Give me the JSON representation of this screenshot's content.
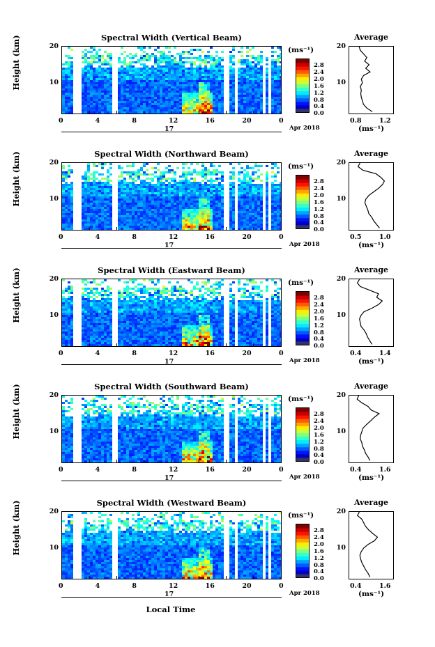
{
  "figure": {
    "x_axis_title": "Local Time",
    "y_axis_title": "Height (km)",
    "date_label": "Apr 2018",
    "day_label": "17",
    "colorbar_unit": "(ms⁻¹)",
    "avg_title": "Average",
    "avg_unit": "(ms⁻¹)",
    "x_tick_labels": [
      "0",
      "4",
      "8",
      "12",
      "16",
      "20",
      "0"
    ],
    "y_tick_labels": [
      "20",
      "10"
    ],
    "colorbar_tick_labels": [
      "2.8",
      "2.4",
      "2.0",
      "1.6",
      "1.2",
      "0.8",
      "0.4",
      "0.0"
    ]
  },
  "chart_data": [
    {
      "type": "heatmap",
      "title": "Spectral Width (Vertical Beam)",
      "xlabel": "",
      "ylabel": "Height (km)",
      "xlim": [
        0,
        24
      ],
      "ylim": [
        1.5,
        20
      ],
      "colorbar_range": [
        0.0,
        3.0
      ],
      "avg_profile": {
        "xlabel": "(ms⁻¹)",
        "xlim": [
          0.6,
          1.4
        ],
        "ticks": [
          "0.8",
          "1.2"
        ],
        "height": [
          2,
          3,
          4,
          5,
          6,
          7,
          8,
          9,
          10,
          11,
          12,
          13,
          14,
          15,
          16,
          17,
          18,
          19,
          20
        ],
        "value": [
          1.02,
          0.92,
          0.86,
          0.84,
          0.82,
          0.81,
          0.82,
          0.8,
          0.84,
          0.82,
          0.86,
          0.98,
          0.9,
          0.96,
          0.88,
          0.92,
          0.86,
          0.8,
          0.78
        ]
      }
    },
    {
      "type": "heatmap",
      "title": "Spectral Width (Northward Beam)",
      "xlabel": "",
      "ylabel": "Height (km)",
      "xlim": [
        0,
        24
      ],
      "ylim": [
        1.5,
        20
      ],
      "colorbar_range": [
        0.0,
        3.0
      ],
      "avg_profile": {
        "xlabel": "(ms⁻¹)",
        "xlim": [
          0.3,
          1.2
        ],
        "ticks": [
          "0.5",
          "1.0"
        ],
        "height": [
          2,
          3,
          4,
          5,
          6,
          7,
          8,
          9,
          10,
          11,
          12,
          13,
          14,
          15,
          16,
          17,
          18,
          19,
          20
        ],
        "value": [
          0.92,
          0.86,
          0.8,
          0.76,
          0.7,
          0.68,
          0.65,
          0.62,
          0.64,
          0.7,
          0.8,
          0.9,
          0.98,
          1.02,
          0.95,
          0.85,
          0.58,
          0.48,
          0.52
        ]
      }
    },
    {
      "type": "heatmap",
      "title": "Spectral Width (Eastward Beam)",
      "xlabel": "",
      "ylabel": "Height (km)",
      "xlim": [
        0,
        24
      ],
      "ylim": [
        1.5,
        20
      ],
      "colorbar_range": [
        0.0,
        3.0
      ],
      "avg_profile": {
        "xlabel": "(ms⁻¹)",
        "xlim": [
          0.3,
          1.5
        ],
        "ticks": [
          "0.4",
          "1.4"
        ],
        "height": [
          2,
          3,
          4,
          5,
          6,
          7,
          8,
          9,
          10,
          11,
          12,
          13,
          14,
          15,
          16,
          17,
          18,
          19,
          20
        ],
        "value": [
          0.92,
          0.86,
          0.8,
          0.76,
          0.7,
          0.62,
          0.6,
          0.58,
          0.62,
          0.7,
          0.92,
          1.1,
          1.2,
          1.05,
          1.1,
          0.85,
          0.6,
          0.52,
          0.58
        ]
      }
    },
    {
      "type": "heatmap",
      "title": "Spectral Width (Southward Beam)",
      "xlabel": "",
      "ylabel": "Height (km)",
      "xlim": [
        0,
        24
      ],
      "ylim": [
        1.5,
        20
      ],
      "colorbar_range": [
        0.0,
        3.0
      ],
      "avg_profile": {
        "xlabel": "(ms⁻¹)",
        "xlim": [
          0.3,
          1.7
        ],
        "ticks": [
          "0.4",
          "1.6"
        ],
        "height": [
          2,
          3,
          4,
          5,
          6,
          7,
          8,
          9,
          10,
          11,
          12,
          13,
          14,
          15,
          16,
          17,
          18,
          19,
          20
        ],
        "value": [
          0.96,
          0.9,
          0.82,
          0.78,
          0.72,
          0.7,
          0.65,
          0.66,
          0.7,
          0.74,
          0.85,
          0.98,
          1.1,
          1.25,
          1.0,
          0.9,
          0.7,
          0.55,
          0.6
        ]
      }
    },
    {
      "type": "heatmap",
      "title": "Spectral Width (Westward Beam)",
      "xlabel": "Local Time",
      "ylabel": "Height (km)",
      "xlim": [
        0,
        24
      ],
      "ylim": [
        1.5,
        20
      ],
      "colorbar_range": [
        0.0,
        3.0
      ],
      "avg_profile": {
        "xlabel": "(ms⁻¹)",
        "xlim": [
          0.3,
          1.7
        ],
        "ticks": [
          "0.4",
          "1.6"
        ],
        "height": [
          2,
          3,
          4,
          5,
          6,
          7,
          8,
          9,
          10,
          11,
          12,
          13,
          14,
          15,
          16,
          17,
          18,
          19,
          20
        ],
        "value": [
          0.96,
          0.9,
          0.82,
          0.76,
          0.7,
          0.66,
          0.64,
          0.68,
          0.76,
          0.9,
          1.1,
          1.2,
          1.05,
          0.92,
          0.82,
          0.76,
          0.7,
          0.56,
          0.62
        ]
      }
    }
  ]
}
